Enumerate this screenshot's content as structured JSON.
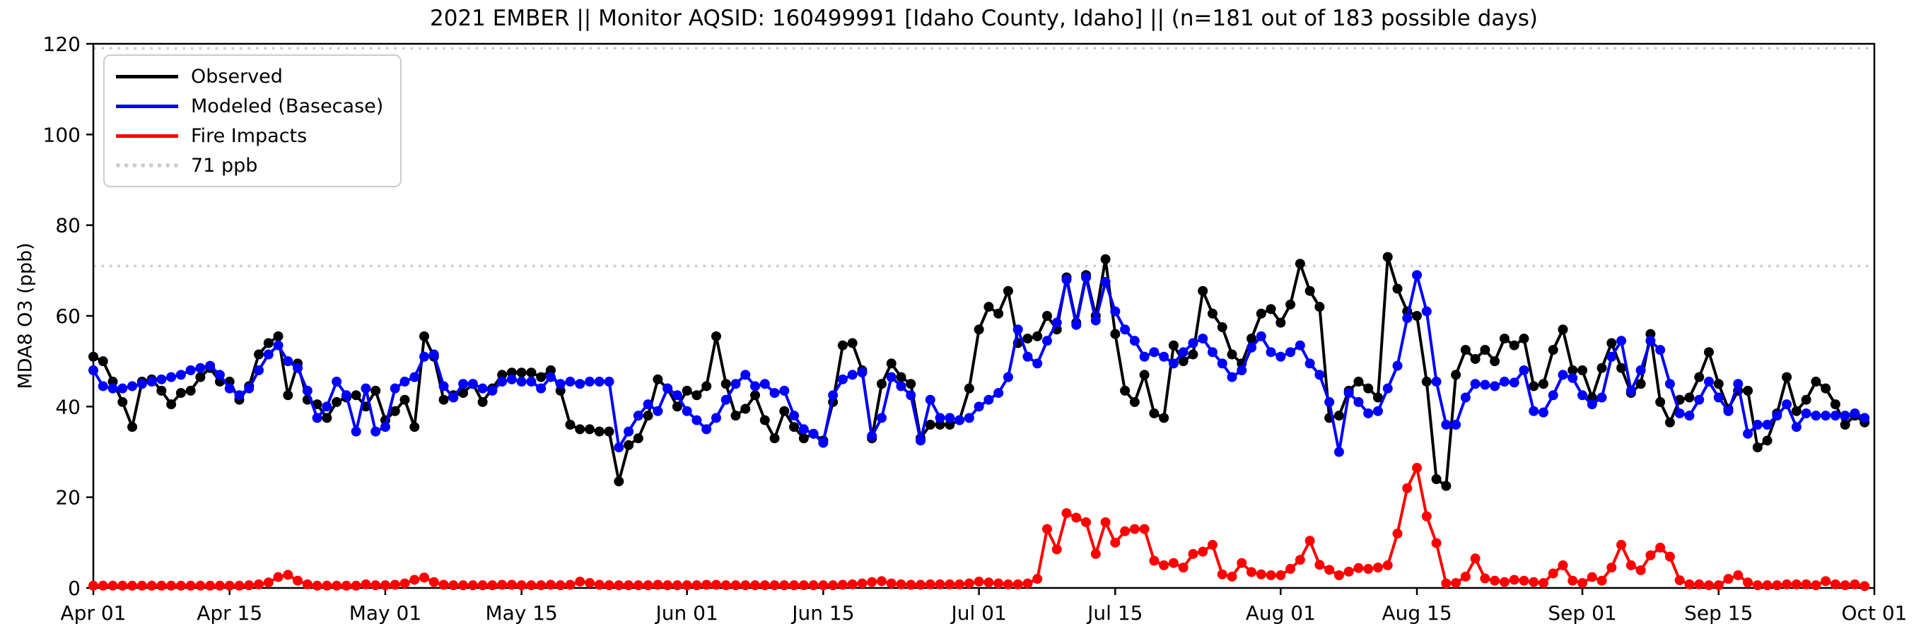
{
  "figure": {
    "background": "#ffffff",
    "axis_color": "#000000",
    "grid_dotted_color": "#cdcdcd"
  },
  "legend": {
    "items": [
      {
        "label": "Observed",
        "color": "#000000",
        "style": "solid"
      },
      {
        "label": "Modeled (Basecase)",
        "color": "#0000ff",
        "style": "solid"
      },
      {
        "label": "Fire Impacts",
        "color": "#ff0000",
        "style": "solid"
      },
      {
        "label": "71 ppb",
        "color": "#cdcdcd",
        "style": "dotted"
      }
    ]
  },
  "chart_data": {
    "type": "line",
    "title": "2021 EMBER || Monitor AQSID: 160499991 [Idaho County, Idaho] || (n=181 out of 183 possible days)",
    "ylabel": "MDA8 O3 (ppb)",
    "ylim": [
      0,
      120
    ],
    "yticks": [
      0,
      20,
      40,
      60,
      80,
      100,
      120
    ],
    "x_range_days": 183,
    "x_ticks": [
      {
        "label": "Apr 01",
        "day": 0
      },
      {
        "label": "Apr 15",
        "day": 14
      },
      {
        "label": "May 01",
        "day": 30
      },
      {
        "label": "May 15",
        "day": 44
      },
      {
        "label": "Jun 01",
        "day": 61
      },
      {
        "label": "Jun 15",
        "day": 75
      },
      {
        "label": "Jul 01",
        "day": 91
      },
      {
        "label": "Jul 15",
        "day": 105
      },
      {
        "label": "Aug 01",
        "day": 122
      },
      {
        "label": "Aug 15",
        "day": 136
      },
      {
        "label": "Sep 01",
        "day": 153
      },
      {
        "label": "Sep 15",
        "day": 167
      },
      {
        "label": "Oct 01",
        "day": 183
      }
    ],
    "threshold": {
      "label": "71 ppb",
      "value": 71
    },
    "upper_dotted_value": 119,
    "legend_position": "upper left",
    "grid": false,
    "series": [
      {
        "name": "Observed",
        "color": "#000000",
        "marker": "circle",
        "values": [
          51,
          50,
          45.5,
          41,
          35.5,
          45.5,
          46,
          43.5,
          40.5,
          43,
          43.5,
          46.5,
          48.5,
          45.5,
          45.5,
          41.5,
          44.5,
          51.5,
          54,
          55.5,
          42.5,
          49.5,
          41.5,
          40.5,
          37.5,
          41,
          42,
          42.5,
          40,
          43.5,
          37,
          39,
          41.5,
          35.5,
          55.5,
          51,
          41.5,
          42.5,
          43,
          45,
          41,
          44,
          47,
          47.5,
          47.5,
          47.5,
          46.5,
          48,
          43.5,
          36,
          35,
          35,
          34.5,
          34.5,
          23.5,
          31.5,
          33,
          38,
          46,
          44,
          40,
          43.5,
          42.5,
          44.5,
          55.5,
          45,
          38,
          39.5,
          42.5,
          37,
          33,
          39,
          35.5,
          33,
          34,
          32.5,
          41,
          53.5,
          54,
          48,
          33,
          45,
          49.5,
          46.5,
          45,
          33,
          36,
          36,
          36,
          37,
          44,
          57,
          62,
          60.5,
          65.5,
          54,
          55,
          55.5,
          60,
          57,
          68.5,
          58.5,
          69,
          60,
          72.5,
          56,
          43.5,
          41,
          47,
          38.5,
          37.5,
          53.5,
          50,
          51.5,
          65.5,
          60.5,
          57.5,
          51.5,
          49.5,
          55,
          60.5,
          61.5,
          58.5,
          62.5,
          71.5,
          65.5,
          62,
          37.5,
          38,
          43.5,
          45.5,
          44,
          42,
          73,
          66,
          61,
          60,
          45.5,
          24,
          22.5,
          47,
          52.5,
          50.5,
          52.5,
          50,
          55,
          53.5,
          55,
          44.5,
          45,
          52.5,
          57,
          48,
          48,
          42,
          48.5,
          54,
          48.5,
          43,
          45,
          56,
          41,
          36.5,
          41.5,
          42,
          46.5,
          52,
          45,
          39.5,
          43.5,
          43.5,
          31,
          32.5,
          38.5,
          46.5,
          39,
          41.5,
          45.5,
          44,
          40.5,
          36,
          38,
          36.5
        ]
      },
      {
        "name": "Modeled (Basecase)",
        "color": "#0000ff",
        "marker": "circle",
        "values": [
          48,
          44.5,
          44,
          44,
          44.5,
          45,
          45.5,
          46,
          46.5,
          47,
          48,
          48.5,
          49,
          47,
          44,
          42.5,
          44,
          48,
          51.5,
          53.5,
          50,
          48.5,
          43.5,
          37.5,
          40,
          45.5,
          42.5,
          34.5,
          44,
          34.5,
          35.5,
          44,
          45.5,
          46.5,
          51,
          51.5,
          44.5,
          42,
          45,
          45,
          44,
          43.5,
          45.5,
          46,
          45.5,
          45.5,
          44,
          46.5,
          45,
          45.5,
          45,
          45.5,
          45.5,
          45.5,
          31,
          34.5,
          38,
          40.5,
          39,
          44,
          42.5,
          39,
          37,
          35,
          37.5,
          41.5,
          45,
          47,
          44.5,
          45,
          43,
          43.5,
          38,
          35,
          34,
          32,
          42.5,
          46,
          47,
          47.5,
          33.5,
          37.5,
          46.5,
          44.5,
          42.5,
          32.5,
          41.5,
          37.5,
          37.5,
          37,
          37.5,
          40,
          41.5,
          43,
          46.5,
          57,
          51,
          49.5,
          54.5,
          58.5,
          68,
          58,
          68.5,
          59,
          67.5,
          61,
          57,
          54.5,
          51,
          52,
          51,
          49.5,
          52,
          54,
          55,
          52,
          49.5,
          46.5,
          48,
          53,
          55.5,
          52,
          51,
          52,
          53.5,
          49.5,
          47,
          41,
          30,
          43,
          41,
          38.5,
          39,
          44,
          49,
          59.5,
          69,
          61,
          45.5,
          36,
          36,
          42,
          45,
          44.8,
          44.5,
          45.5,
          45.3,
          48,
          39,
          38.7,
          42.5,
          47,
          46.3,
          42.5,
          40.5,
          42,
          51,
          54.5,
          43.5,
          48,
          54.5,
          52.5,
          45,
          38.5,
          38,
          41.5,
          45.5,
          42,
          39,
          45,
          34,
          36,
          36,
          38,
          40.5,
          35.5,
          38.5,
          38,
          38,
          38,
          38,
          38.5,
          37.5
        ]
      },
      {
        "name": "Fire Impacts",
        "color": "#ff0000",
        "marker": "circle",
        "values": [
          0.5,
          0.5,
          0.5,
          0.5,
          0.5,
          0.5,
          0.5,
          0.5,
          0.5,
          0.5,
          0.5,
          0.5,
          0.5,
          0.5,
          0.5,
          0.5,
          0.6,
          0.8,
          1.2,
          2.4,
          2.9,
          1.6,
          0.8,
          0.5,
          0.5,
          0.5,
          0.5,
          0.5,
          0.8,
          0.6,
          0.6,
          0.7,
          1,
          1.8,
          2.3,
          1.3,
          0.7,
          0.6,
          0.6,
          0.6,
          0.6,
          0.6,
          0.7,
          0.7,
          0.6,
          0.6,
          0.6,
          0.7,
          0.6,
          0.7,
          1.4,
          1.1,
          0.7,
          0.6,
          0.6,
          0.6,
          0.6,
          0.6,
          0.7,
          0.6,
          0.6,
          0.6,
          0.6,
          0.7,
          0.7,
          0.6,
          0.6,
          0.6,
          0.6,
          0.6,
          0.6,
          0.6,
          0.6,
          0.6,
          0.6,
          0.6,
          0.6,
          0.7,
          0.8,
          1,
          1.3,
          1.5,
          1,
          0.8,
          0.7,
          0.7,
          0.8,
          0.8,
          0.8,
          0.8,
          1,
          1.4,
          1.2,
          1,
          0.8,
          0.8,
          1,
          2,
          13,
          8.5,
          16.5,
          15.5,
          14.5,
          7.5,
          14.5,
          10,
          12.5,
          13,
          13,
          6,
          5,
          5.5,
          4.5,
          7.5,
          8,
          9.5,
          3,
          2.5,
          5.5,
          3.5,
          3,
          2.8,
          2.8,
          4.2,
          6.2,
          10.4,
          5.1,
          4,
          2.8,
          3.6,
          4.4,
          4.2,
          4.5,
          5,
          12,
          22,
          26.5,
          15.8,
          9.9,
          1,
          1.1,
          2.5,
          6.5,
          2.1,
          1.6,
          1.3,
          1.8,
          1.6,
          1.3,
          1.1,
          3.2,
          5,
          1.6,
          1.1,
          2.4,
          1.6,
          4.5,
          9.5,
          5,
          3.9,
          7.2,
          8.9,
          6.9,
          1.7,
          0.8,
          0.8,
          0.6,
          0.6,
          2,
          2.8,
          1.2,
          0.6,
          0.6,
          0.6,
          0.8,
          0.8,
          0.8,
          0.6,
          1.5,
          0.8,
          0.6,
          0.8,
          0.4
        ]
      }
    ]
  }
}
